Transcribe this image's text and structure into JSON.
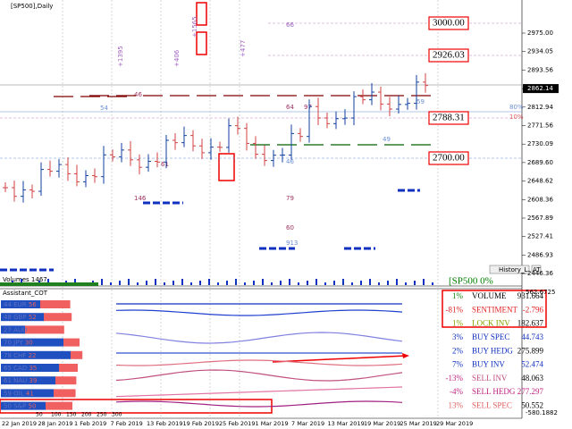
{
  "header": {
    "symbol": "[SP500],Daily",
    "volume_label": "Volumes 1467",
    "history_button": "History_L",
    "at_button": "AT",
    "indicator": "Assistant_COT",
    "status": "[SP500 0%"
  },
  "price_axis": [
    "2975.00",
    "2934.05",
    "2893.56",
    "2862.14",
    "2812.94",
    "2771.56",
    "2730.09",
    "2689.60",
    "2648.62",
    "2608.36",
    "2567.89",
    "2527.41",
    "2486.93",
    "2446.36"
  ],
  "indicator_axis": [
    "562.6725",
    "-580.1882"
  ],
  "levels": [
    "3000.00",
    "2926.03",
    "2788.31",
    "2700.00"
  ],
  "level_percents": [
    "80%",
    "10%"
  ],
  "annotations": [
    "66",
    "46",
    "54",
    "64",
    "97",
    "61",
    "146",
    "79",
    "60",
    "913",
    "49",
    "46",
    "59",
    "+1395",
    "+406",
    "+1565",
    "+477"
  ],
  "dates": [
    "22 Jan 2019",
    "28 Jan 2019",
    "1 Feb 2019",
    "7 Feb 2019",
    "13 Feb 2019",
    "19 Feb 2019",
    "25 Feb 2019",
    "1 Mar 2019",
    "7 Mar 2019",
    "13 Mar 2019",
    "19 Mar 2019",
    "25 Mar 2019",
    "29 Mar 2019"
  ],
  "cot": [
    {
      "long": 44,
      "currency": "EUR",
      "short": 56
    },
    {
      "long": 48,
      "currency": "GBP",
      "short": 52
    },
    {
      "long": 27,
      "currency": "AUD",
      "short": 73
    },
    {
      "long": 70,
      "currency": "JPY",
      "short": 30
    },
    {
      "long": 78,
      "currency": "CHF",
      "short": 22
    },
    {
      "long": 65,
      "currency": "CAD",
      "short": 35
    },
    {
      "long": 61,
      "currency": "NAU",
      "short": 39
    },
    {
      "long": 59,
      "currency": "OIL",
      "short": 41
    },
    {
      "long": 50,
      "currency": "S&P",
      "short": 50
    }
  ],
  "cot_scale": [
    50,
    100,
    150,
    200,
    250,
    300
  ],
  "table": [
    [
      "1%",
      "VOLUME",
      "931.664"
    ],
    [
      "-81%",
      "SENTIMENT",
      "-2.796"
    ],
    [
      "1%",
      "LOCK INV",
      "182.637"
    ],
    [
      "3%",
      "BUY SPEC",
      "44.743"
    ],
    [
      "2%",
      "BUY HEDG",
      "275.899"
    ],
    [
      "7%",
      "BUY INV",
      "52.474"
    ],
    [
      "-13%",
      "SELL INV",
      "48.063"
    ],
    [
      "-4%",
      "SELL HEDG",
      "277.297"
    ],
    [
      "13%",
      "SELL SPEC",
      "50.552"
    ]
  ]
}
